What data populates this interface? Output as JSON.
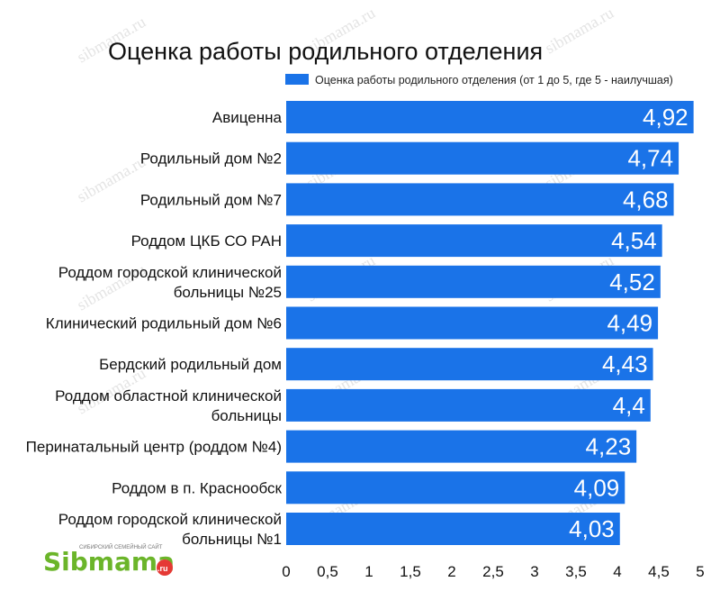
{
  "chart_data": {
    "type": "bar",
    "orientation": "horizontal",
    "title": "Оценка работы родильного отделения",
    "legend": {
      "placement": "top-right",
      "entries": [
        "Оценка работы родильного отделения (от 1 до 5, где 5 - наилучшая)"
      ]
    },
    "categories": [
      [
        "Авиценна"
      ],
      [
        "Родильный дом №2"
      ],
      [
        "Родильный дом №7"
      ],
      [
        "Роддом ЦКБ СО РАН"
      ],
      [
        "Роддом городской клинической",
        "больницы №25"
      ],
      [
        "Клинический родильный дом №6"
      ],
      [
        "Бердский родильный дом"
      ],
      [
        "Роддом областной клинической",
        "больницы"
      ],
      [
        "Перинатальный центр (роддом №4)"
      ],
      [
        "Роддом в п. Краснообск"
      ],
      [
        "Роддом городской клинической",
        "больницы №1"
      ]
    ],
    "series": [
      {
        "name": "Оценка работы родильного отделения (от 1 до 5, где 5 - наилучшая)",
        "values": [
          4.92,
          4.74,
          4.68,
          4.54,
          4.52,
          4.49,
          4.43,
          4.4,
          4.23,
          4.09,
          4.03
        ],
        "labels": [
          "4,92",
          "4,74",
          "4,68",
          "4,54",
          "4,52",
          "4,49",
          "4,43",
          "4,4",
          "4,23",
          "4,09",
          "4,03"
        ]
      }
    ],
    "xlim": [
      0,
      5
    ],
    "xticks": [
      0,
      0.5,
      1,
      1.5,
      2,
      2.5,
      3,
      3.5,
      4,
      4.5,
      5
    ],
    "xtick_labels": [
      "0",
      "0,5",
      "1",
      "1,5",
      "2",
      "2,5",
      "3",
      "3,5",
      "4",
      "4,5",
      "5"
    ],
    "xlabel": "",
    "ylabel": "",
    "grid": false,
    "bar_color": "#1a73e8"
  },
  "watermark": {
    "text": "sibmama.ru",
    "color": "#e4e4e4"
  },
  "logo": {
    "name": "Sibmama",
    "tagline": "СИБИРСКИЙ СЕМЕЙНЫЙ САЙТ",
    "main": "Sibmama",
    "suffix": ".ru",
    "color": "#6bb52a"
  }
}
